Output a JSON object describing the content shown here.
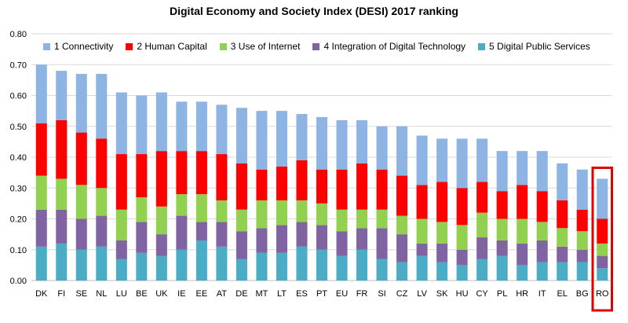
{
  "chart_data": {
    "type": "bar",
    "stacked": true,
    "title": "Digital Economy and Society Index (DESI) 2017 ranking",
    "categories": [
      "DK",
      "FI",
      "SE",
      "NL",
      "LU",
      "BE",
      "UK",
      "IE",
      "EE",
      "AT",
      "DE",
      "MT",
      "LT",
      "ES",
      "PT",
      "EU",
      "FR",
      "SI",
      "CZ",
      "LV",
      "SK",
      "HU",
      "CY",
      "PL",
      "HR",
      "IT",
      "EL",
      "BG",
      "RO"
    ],
    "series": [
      {
        "name": "5 Digital Public Services",
        "color": "#4bacc6",
        "values": [
          0.11,
          0.12,
          0.1,
          0.11,
          0.07,
          0.09,
          0.08,
          0.1,
          0.13,
          0.11,
          0.07,
          0.09,
          0.09,
          0.11,
          0.1,
          0.08,
          0.1,
          0.07,
          0.06,
          0.08,
          0.06,
          0.05,
          0.07,
          0.08,
          0.05,
          0.06,
          0.06,
          0.06,
          0.04
        ]
      },
      {
        "name": "4 Integration of Digital Technology",
        "color": "#8064a2",
        "values": [
          0.12,
          0.11,
          0.1,
          0.1,
          0.06,
          0.1,
          0.07,
          0.11,
          0.06,
          0.08,
          0.09,
          0.08,
          0.09,
          0.08,
          0.08,
          0.08,
          0.07,
          0.1,
          0.09,
          0.04,
          0.06,
          0.05,
          0.07,
          0.05,
          0.07,
          0.07,
          0.05,
          0.04,
          0.04
        ]
      },
      {
        "name": "3 Use of Internet",
        "color": "#92d050",
        "values": [
          0.11,
          0.1,
          0.11,
          0.09,
          0.1,
          0.08,
          0.09,
          0.07,
          0.09,
          0.07,
          0.07,
          0.09,
          0.08,
          0.07,
          0.07,
          0.07,
          0.06,
          0.06,
          0.06,
          0.08,
          0.07,
          0.08,
          0.08,
          0.07,
          0.08,
          0.06,
          0.06,
          0.06,
          0.04
        ]
      },
      {
        "name": "2 Human Capital",
        "color": "#ff0000",
        "values": [
          0.17,
          0.19,
          0.17,
          0.16,
          0.18,
          0.14,
          0.18,
          0.14,
          0.14,
          0.15,
          0.15,
          0.1,
          0.11,
          0.13,
          0.11,
          0.13,
          0.15,
          0.13,
          0.13,
          0.11,
          0.13,
          0.12,
          0.1,
          0.09,
          0.11,
          0.1,
          0.09,
          0.07,
          0.08
        ]
      },
      {
        "name": "1 Connectivity",
        "color": "#8db4e2",
        "values": [
          0.19,
          0.16,
          0.19,
          0.21,
          0.2,
          0.19,
          0.19,
          0.16,
          0.16,
          0.16,
          0.18,
          0.19,
          0.18,
          0.15,
          0.17,
          0.16,
          0.14,
          0.14,
          0.16,
          0.16,
          0.14,
          0.16,
          0.14,
          0.13,
          0.11,
          0.13,
          0.12,
          0.13,
          0.13
        ]
      }
    ],
    "legend_order": [
      "1 Connectivity",
      "2 Human Capital",
      "3 Use of Internet",
      "4 Integration of Digital Technology",
      "5 Digital Public Services"
    ],
    "ylim": [
      0,
      0.8
    ],
    "yticks": [
      "0.00",
      "0.10",
      "0.20",
      "0.30",
      "0.40",
      "0.50",
      "0.60",
      "0.70",
      "0.80"
    ],
    "grid": true,
    "highlight": {
      "category": "RO",
      "color": "#e00000"
    }
  }
}
